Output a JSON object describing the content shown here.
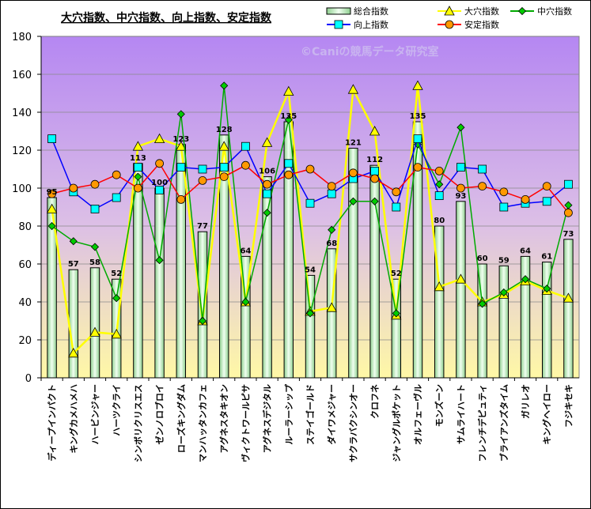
{
  "chart_data": {
    "type": "bar",
    "title": "大穴指数、中穴指数、向上指数、安定指数",
    "watermark": "©Caniの競馬データ研究室",
    "categories": [
      "ディープインパクト",
      "キングカメハメハ",
      "ハービンジャー",
      "ハーツクライ",
      "シンボリクリスエス",
      "ゼンノロブロイ",
      "ローズキングダム",
      "マンハッタンカフェ",
      "アグネスタキオン",
      "ヴィクトワールピサ",
      "アグネスデジタル",
      "ルーラーシップ",
      "ステイゴールド",
      "ダイワメジャー",
      "サクラバクシンオー",
      "クロフネ",
      "ジャングルポケット",
      "オルフェーヴル",
      "モンズーン",
      "サムライハート",
      "フレンチデピュティ",
      "ブライアンズタイム",
      "ガリレオ",
      "キングヘイロー",
      "フジキセキ"
    ],
    "ylim": [
      0,
      180
    ],
    "yticks": [
      0,
      20,
      40,
      60,
      80,
      100,
      120,
      140,
      160,
      180
    ],
    "grid": true,
    "legend_position": "top",
    "series": [
      {
        "name": "総合指数",
        "kind": "bar",
        "color": "#cfeecc",
        "values": [
          95,
          57,
          58,
          52,
          113,
          100,
          123,
          77,
          128,
          64,
          106,
          135,
          54,
          68,
          121,
          112,
          52,
          135,
          80,
          93,
          60,
          59,
          64,
          61,
          73
        ]
      },
      {
        "name": "大穴指数",
        "kind": "line",
        "color": "#ffff00",
        "marker": "triangle",
        "values": [
          89,
          13,
          24,
          23,
          122,
          126,
          122,
          30,
          122,
          40,
          124,
          151,
          35,
          37,
          152,
          130,
          33,
          154,
          48,
          52,
          40,
          44,
          51,
          46,
          42
        ]
      },
      {
        "name": "中穴指数",
        "kind": "line",
        "color": "#00aa00",
        "marker": "diamond",
        "values": [
          80,
          72,
          69,
          42,
          106,
          62,
          139,
          30,
          154,
          40,
          87,
          136,
          34,
          78,
          93,
          93,
          34,
          123,
          102,
          132,
          39,
          45,
          52,
          47,
          91
        ]
      },
      {
        "name": "向上指数",
        "kind": "line",
        "color": "#0000ff",
        "marker": "square",
        "values": [
          126,
          98,
          89,
          95,
          111,
          99,
          111,
          110,
          111,
          122,
          97,
          113,
          92,
          97,
          105,
          109,
          90,
          126,
          96,
          111,
          110,
          90,
          92,
          93,
          102
        ]
      },
      {
        "name": "安定指数",
        "kind": "line",
        "color": "#ff0000",
        "marker": "circle",
        "values": [
          97,
          100,
          102,
          107,
          100,
          113,
          94,
          104,
          106,
          112,
          102,
          107,
          110,
          101,
          108,
          105,
          98,
          111,
          109,
          100,
          101,
          98,
          94,
          101,
          87
        ]
      }
    ]
  }
}
